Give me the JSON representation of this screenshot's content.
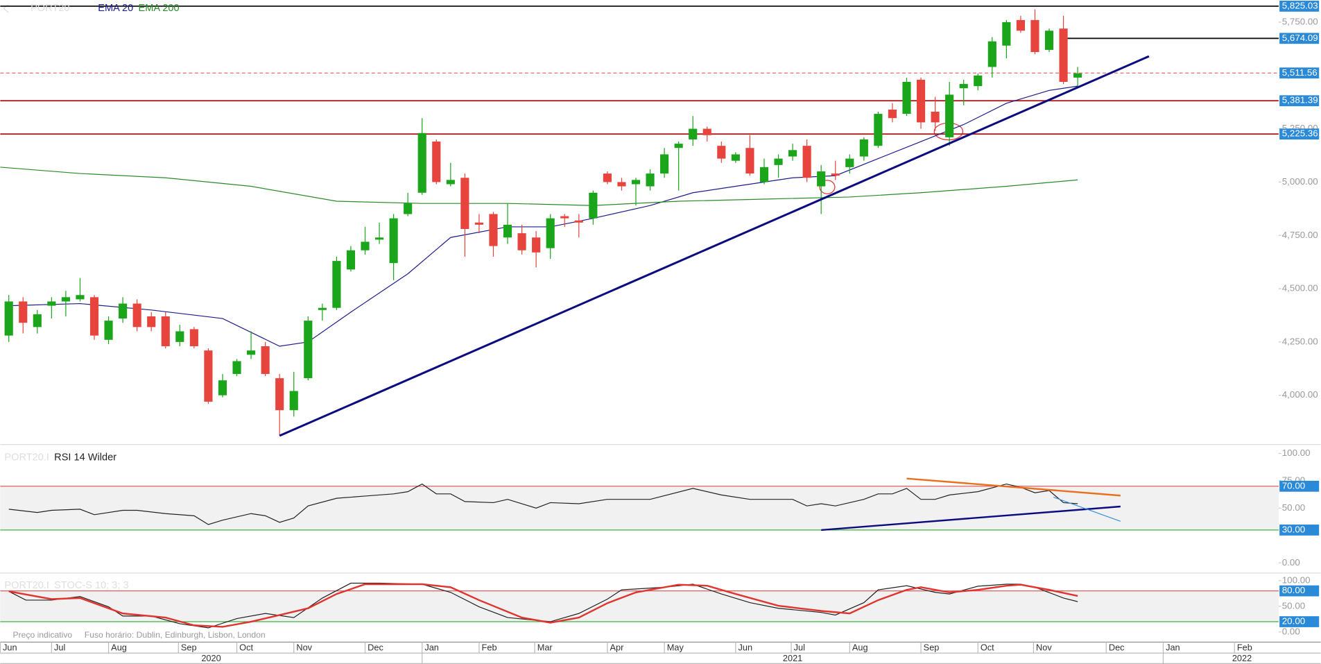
{
  "time_axis": {
    "xlim": [
      -0.6,
      89.1
    ],
    "xticks": [
      {
        "value": -0.6,
        "label": "Jun"
      },
      {
        "value": 3,
        "label": "Jul"
      },
      {
        "value": 7,
        "label": "Aug"
      },
      {
        "value": 11.9,
        "label": "Sep"
      },
      {
        "value": 16,
        "label": "Oct"
      },
      {
        "value": 20,
        "label": "Nov"
      },
      {
        "value": 25,
        "label": "Dec"
      },
      {
        "value": 29,
        "label": "Jan"
      },
      {
        "value": 33,
        "label": "Feb"
      },
      {
        "value": 36.9,
        "label": "Mar"
      },
      {
        "value": 42,
        "label": "Apr"
      },
      {
        "value": 46,
        "label": "May"
      },
      {
        "value": 51,
        "label": "Jun"
      },
      {
        "value": 54.9,
        "label": "Jul"
      },
      {
        "value": 59,
        "label": "Aug"
      },
      {
        "value": 64,
        "label": "Sep"
      },
      {
        "value": 68,
        "label": "Oct"
      },
      {
        "value": 71.9,
        "label": "Nov"
      },
      {
        "value": 77,
        "label": "Dec"
      },
      {
        "value": 81,
        "label": "Jan"
      },
      {
        "value": 86,
        "label": "Feb"
      }
    ],
    "years": [
      "2020",
      "2021",
      "2022"
    ]
  },
  "footer": {
    "note": "Preço indicativo",
    "timezone": "Fuso horário: Dublin, Edinburgh, Lisbon, London"
  },
  "chart_data": [
    {
      "type": "candlestick",
      "instrument": "PORT20",
      "up_color": "#1aa51a",
      "down_color": "#e8443e",
      "candles": {
        "open": [
          4280,
          4440,
          4320,
          4420,
          4440,
          4450,
          4460,
          4260,
          4360,
          4430,
          4370,
          4370,
          4250,
          4310,
          4210,
          4000,
          4100,
          4190,
          4230,
          4080,
          3930,
          4080,
          4400,
          4410,
          4590,
          4680,
          4730,
          4620,
          4850,
          4950,
          5190,
          4990,
          5020,
          4810,
          4850,
          4740,
          4760,
          4740,
          4690,
          4840,
          4820,
          4830,
          5040,
          5000,
          4990,
          4980,
          5040,
          5160,
          5200,
          5250,
          5170,
          5100,
          5160,
          5000,
          5080,
          5120,
          5170,
          4980,
          5040,
          5070,
          5120,
          5170,
          5340,
          5320,
          5480,
          5330,
          5210,
          5440,
          5450,
          5540,
          5640,
          5760,
          5760,
          5620,
          5720,
          5490
        ],
        "high": [
          4470,
          4460,
          4400,
          4460,
          4490,
          4550,
          4470,
          4370,
          4460,
          4450,
          4390,
          4390,
          4330,
          4320,
          4220,
          4100,
          4170,
          4300,
          4250,
          4100,
          4110,
          4370,
          4430,
          4650,
          4700,
          4790,
          4810,
          4850,
          4950,
          5300,
          5200,
          5090,
          5040,
          4850,
          4860,
          4900,
          4800,
          4770,
          4850,
          4850,
          4850,
          4960,
          5050,
          5020,
          5020,
          5060,
          5160,
          5190,
          5310,
          5260,
          5190,
          5140,
          5220,
          5110,
          5130,
          5180,
          5200,
          5080,
          5100,
          5130,
          5210,
          5330,
          5370,
          5490,
          5490,
          5400,
          5470,
          5480,
          5510,
          5680,
          5760,
          5780,
          5810,
          5720,
          5780,
          5540
        ],
        "low": [
          4250,
          4290,
          4290,
          4360,
          4370,
          4440,
          4260,
          4240,
          4340,
          4300,
          4300,
          4220,
          4230,
          4220,
          3960,
          3990,
          4090,
          4170,
          4090,
          3810,
          3900,
          4070,
          4350,
          4400,
          4580,
          4660,
          4710,
          4540,
          4840,
          4940,
          4990,
          4980,
          4650,
          4760,
          4650,
          4710,
          4660,
          4600,
          4640,
          4790,
          4740,
          4800,
          4990,
          4960,
          4890,
          4960,
          5020,
          4960,
          5170,
          5190,
          5090,
          5090,
          5030,
          4990,
          5020,
          5100,
          5000,
          4850,
          5010,
          5040,
          5100,
          5160,
          5280,
          5310,
          5250,
          5240,
          5170,
          5360,
          5430,
          5490,
          5580,
          5700,
          5600,
          5610,
          5460,
          5450
        ],
        "close": [
          4440,
          4340,
          4380,
          4440,
          4460,
          4470,
          4280,
          4350,
          4430,
          4320,
          4320,
          4230,
          4300,
          4230,
          3970,
          4070,
          4160,
          4210,
          4100,
          3930,
          4020,
          4350,
          4410,
          4630,
          4680,
          4720,
          4740,
          4830,
          4900,
          5230,
          5000,
          5010,
          4780,
          4800,
          4700,
          4800,
          4680,
          4670,
          4830,
          4830,
          4810,
          4950,
          5000,
          4980,
          5010,
          5040,
          5130,
          5180,
          5250,
          5220,
          5110,
          5130,
          5040,
          5070,
          5110,
          5150,
          5020,
          5050,
          5030,
          5110,
          5200,
          5320,
          5300,
          5470,
          5280,
          5280,
          5410,
          5460,
          5500,
          5660,
          5750,
          5710,
          5610,
          5710,
          5470,
          5510
        ]
      },
      "overlays": [
        {
          "name": "EMA 20",
          "color": "#1c1c8c",
          "x": [
            0,
            5,
            10,
            15,
            19,
            21,
            24,
            28,
            31,
            35,
            38,
            41,
            45,
            48,
            51,
            55,
            58,
            61,
            64,
            67,
            70,
            73,
            75
          ],
          "values": [
            4420,
            4430,
            4400,
            4360,
            4230,
            4250,
            4390,
            4570,
            4740,
            4790,
            4790,
            4830,
            4890,
            4950,
            4980,
            5020,
            5030,
            5110,
            5190,
            5270,
            5370,
            5430,
            5450
          ]
        },
        {
          "name": "EMA 200",
          "color": "#2a8a2a",
          "x": [
            -0.6,
            5,
            11,
            17,
            23,
            29,
            35,
            41,
            47,
            53,
            59,
            64,
            70,
            75
          ],
          "values": [
            5070,
            5040,
            5020,
            4980,
            4910,
            4900,
            4900,
            4890,
            4910,
            4920,
            4930,
            4950,
            4980,
            5010
          ]
        }
      ],
      "ylim": [
        3775,
        5854
      ],
      "yticks": [
        {
          "value": 4000,
          "label": "4,000.00"
        },
        {
          "value": 4250,
          "label": "4,250.00"
        },
        {
          "value": 4500,
          "label": "4,500.00"
        },
        {
          "value": 4750,
          "label": "4,750.00"
        },
        {
          "value": 5000,
          "label": "5,000.00"
        },
        {
          "value": 5250,
          "label": "5,250.00"
        },
        {
          "value": 5500,
          "label": "5,500.00"
        },
        {
          "value": 5750,
          "label": "5,750.00"
        }
      ],
      "levels": [
        {
          "value": 5825.03,
          "label": "5,825.03",
          "color": "#111111"
        },
        {
          "value": 5674.09,
          "label": "5,674.09",
          "color": "#111111",
          "start": 74
        },
        {
          "value": 5511.56,
          "label": "5,511.56",
          "color": "#e86a6a",
          "dashed": true
        },
        {
          "value": 5381.39,
          "label": "5,381.39",
          "color": "#b01c1c"
        },
        {
          "value": 5225.36,
          "label": "5,225.36",
          "color": "#b01c1c"
        }
      ],
      "trendlines": [
        {
          "color": "#0c0c80",
          "x": [
            19,
            80
          ],
          "values": [
            3810,
            5590
          ]
        }
      ]
    },
    {
      "type": "line",
      "instrument": "PORT20.I",
      "title": "RSI 14 Wilder",
      "ylim": [
        -7.7,
        106.2
      ],
      "yticks": [
        {
          "value": 0,
          "label": "0.00"
        },
        {
          "value": 50,
          "label": "50.00"
        },
        {
          "value": 75,
          "label": "75.00"
        },
        {
          "value": 100,
          "label": "100.00"
        }
      ],
      "bands": [
        {
          "value": 70,
          "label": "70.00",
          "color": "#e06060"
        },
        {
          "value": 30,
          "label": "30.00",
          "color": "#3cb43c"
        }
      ],
      "band_fill": "#f1f1f1",
      "series": [
        {
          "color": "#222222",
          "x": [
            0,
            2,
            3,
            5,
            6,
            8,
            9,
            11,
            13,
            14,
            15,
            17,
            18,
            19,
            20,
            21,
            23,
            25,
            27,
            28,
            29,
            30,
            31,
            32,
            34,
            35,
            37,
            38,
            40,
            42,
            45,
            48,
            50,
            52,
            55,
            56,
            57,
            58,
            60,
            61,
            62,
            63,
            64,
            65,
            66,
            68,
            70,
            71,
            72,
            73,
            74,
            75
          ],
          "values": [
            49,
            46,
            48,
            49,
            44,
            48,
            48,
            45,
            43,
            35,
            39,
            45,
            43,
            37,
            41,
            52,
            59,
            61,
            63,
            65,
            72,
            63,
            63,
            56,
            55,
            58,
            50,
            55,
            54,
            58,
            58,
            68,
            62,
            58,
            58,
            52,
            54,
            52,
            58,
            63,
            63,
            68,
            58,
            58,
            62,
            65,
            72,
            69,
            64,
            66,
            55,
            54
          ]
        }
      ],
      "trendlines": [
        {
          "color": "#e8701e",
          "x": [
            63,
            78
          ],
          "values": [
            77,
            61.5
          ]
        },
        {
          "color": "#0c0c80",
          "x": [
            57,
            78
          ],
          "values": [
            30,
            51.5
          ]
        },
        {
          "color": "#3a8fd8",
          "x": [
            73.3,
            78
          ],
          "values": [
            60,
            38
          ]
        }
      ]
    },
    {
      "type": "line",
      "instrument": "PORT20.I",
      "title": "STOC-S 10; 3; 3",
      "ylim": [
        -16.4,
        111.5
      ],
      "yticks": [
        {
          "value": 0,
          "label": "0.00"
        },
        {
          "value": 50,
          "label": "50.00"
        },
        {
          "value": 100,
          "label": "100.00"
        }
      ],
      "bands": [
        {
          "value": 80,
          "label": "80.00",
          "color": "#e06060"
        },
        {
          "value": 20,
          "label": "20.00",
          "color": "#3cb43c"
        }
      ],
      "band_fill": "#f1f1f1",
      "series": [
        {
          "color": "#222222",
          "x": [
            0,
            1.2,
            3,
            5,
            7,
            8,
            10,
            12,
            14,
            16,
            18,
            20,
            22,
            24,
            26,
            29,
            31,
            33,
            35,
            38,
            40,
            42,
            43,
            46,
            48,
            50,
            52,
            54,
            57,
            58,
            60,
            61,
            63,
            65,
            66,
            68,
            70,
            71,
            72,
            74,
            75
          ],
          "values": [
            79,
            62,
            62,
            69,
            49,
            31,
            31,
            16,
            8,
            26,
            36,
            28,
            66,
            95,
            95,
            93,
            77,
            49,
            28,
            20,
            36,
            64,
            82,
            87,
            93,
            74,
            57,
            46,
            38,
            33,
            57,
            82,
            90,
            77,
            74,
            89,
            93,
            93,
            87,
            66,
            59
          ]
        },
        {
          "color": "#e0352e",
          "x": [
            0,
            3,
            5,
            8,
            11,
            13,
            15,
            17,
            19,
            21,
            23,
            25,
            29,
            31,
            33,
            36,
            38,
            40,
            42,
            44,
            47,
            49,
            51,
            54,
            57,
            59,
            61,
            63,
            64,
            66,
            68,
            70,
            71,
            73,
            75
          ],
          "values": [
            79,
            64,
            66,
            36,
            28,
            13,
            10,
            20,
            33,
            46,
            74,
            93,
            93,
            87,
            62,
            28,
            18,
            28,
            56,
            77,
            92,
            90,
            74,
            51,
            41,
            36,
            62,
            82,
            87,
            77,
            82,
            90,
            92,
            82,
            70
          ]
        }
      ]
    }
  ]
}
